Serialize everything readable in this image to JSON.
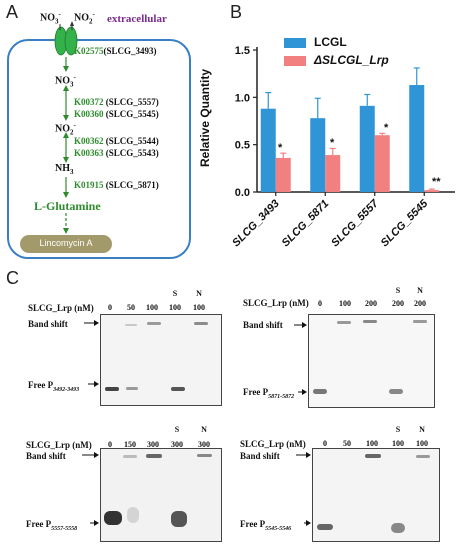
{
  "panel_a": {
    "letter": "A",
    "no3_top": "NO",
    "no2_top": "NO",
    "extracellular": "extracellular",
    "k1": "K02575",
    "k1_gene": "(SLCG_3493)",
    "no3_inner": "NO",
    "k2": "K00372",
    "k2_gene": "(SLCG_5557)",
    "k3": "K00360",
    "k3_gene": "(SLCG_5545)",
    "no2_inner": "NO",
    "k4": "K00362",
    "k4_gene": "(SLCG_5544)",
    "k5": "K00363",
    "k5_gene": "(SLCG_5543)",
    "nh3": "NH",
    "k6": "K01915",
    "k6_gene": "(SLCG_5871)",
    "glutamine": "L-Glutamine",
    "lincomycin": "Lincomycin A",
    "colors": {
      "green": "#2e8b2e",
      "purple": "#7a2c8e",
      "cell_border": "#3a7fc4",
      "lincomycin_fill": "#a39a6c"
    }
  },
  "panel_b": {
    "letter": "B",
    "star1": "*",
    "star2": "*",
    "star3": "*",
    "star4": "**"
  },
  "chart_data": {
    "type": "bar",
    "categories": [
      "SLCG_3493",
      "SLCG_5871",
      "SLCG_5557",
      "SLCG_5545"
    ],
    "series": [
      {
        "name": "LCGL",
        "values": [
          0.88,
          0.78,
          0.91,
          1.13
        ],
        "errors": [
          0.17,
          0.21,
          0.12,
          0.18
        ],
        "color": "#2f95d6"
      },
      {
        "name": "ΔSLCGL_Lrp",
        "values": [
          0.36,
          0.39,
          0.6,
          0.02
        ],
        "errors": [
          0.05,
          0.07,
          0.02,
          0.01
        ],
        "color": "#f28080"
      }
    ],
    "ylabel": "Relative Quantity",
    "ylim": [
      0,
      1.5
    ],
    "yticks": [
      "0.0",
      "0.5",
      "1.0",
      "1.5"
    ],
    "legend_position": "top-right",
    "grid": false
  },
  "panel_c": {
    "letter": "C",
    "gels": [
      {
        "title": "SLCG_Lrp (nM)",
        "lanes": [
          "0",
          "50",
          "100",
          "100",
          "100"
        ],
        "top": [
          "",
          "",
          "",
          "S",
          "N"
        ],
        "shift": "Band shift",
        "free": "Free P",
        "sub": "3492-3493"
      },
      {
        "title": "SLCG_Lrp (nM)",
        "lanes": [
          "0",
          "100",
          "200",
          "200",
          "200"
        ],
        "top": [
          "",
          "",
          "",
          "S",
          "N"
        ],
        "shift": "Band shift",
        "free": "Free P",
        "sub": "5871-5872"
      },
      {
        "title": "SLCG_Lrp (nM)",
        "lanes": [
          "0",
          "150",
          "300",
          "300",
          "300"
        ],
        "top": [
          "",
          "",
          "",
          "S",
          "N"
        ],
        "shift": "Band shift",
        "free": "Free P",
        "sub": "5557-5558"
      },
      {
        "title": "SLCG_Lrp (nM)",
        "lanes": [
          "0",
          "50",
          "100",
          "100",
          "100"
        ],
        "top": [
          "",
          "",
          "",
          "S",
          "N"
        ],
        "shift": "Band shift",
        "free": "Free P",
        "sub": "5545-5546"
      }
    ]
  }
}
